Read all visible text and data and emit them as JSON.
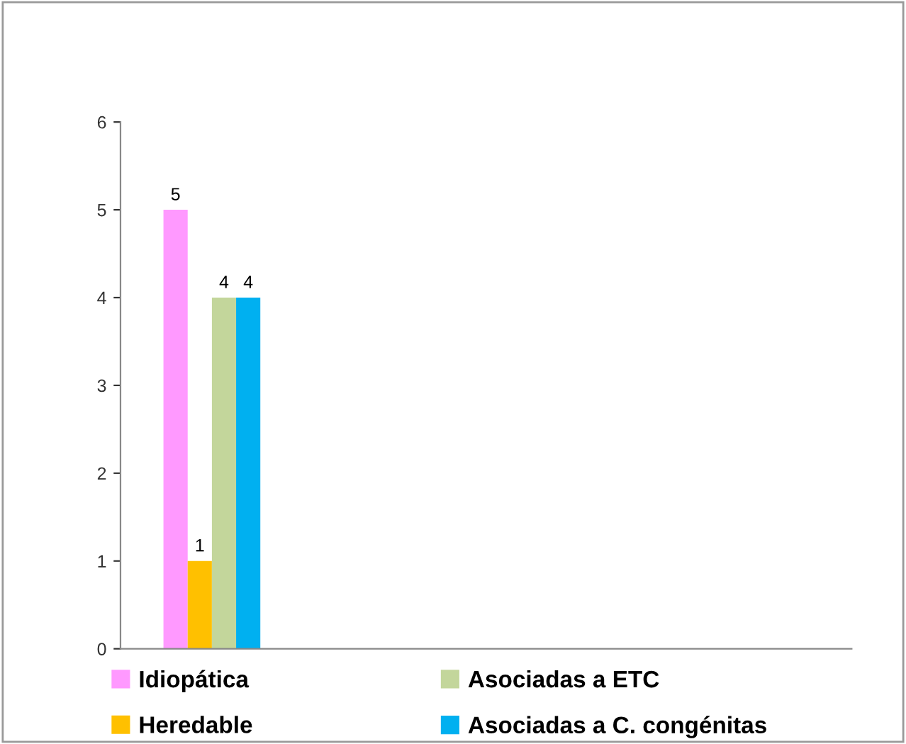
{
  "chart_data": {
    "type": "bar",
    "categories": [
      null,
      null,
      null,
      null
    ],
    "series": [
      {
        "name": "Idiopática",
        "color": "#ff99ff",
        "values": [
          5,
          null,
          null,
          null
        ]
      },
      {
        "name": "Heredable",
        "color": "#ffc000",
        "values": [
          1,
          null,
          null,
          null
        ]
      },
      {
        "name": "Asociadas a ETC",
        "color": "#c3d69b",
        "values": [
          4,
          null,
          null,
          null
        ]
      },
      {
        "name": "Asociadas a C. congénitas",
        "color": "#00b0f0",
        "values": [
          4,
          null,
          null,
          null
        ]
      }
    ],
    "ylim": [
      0,
      6
    ],
    "yticks": [
      0,
      1,
      2,
      3,
      4,
      5,
      6
    ],
    "grid": false,
    "legend": "bottom",
    "data_labels": true
  }
}
